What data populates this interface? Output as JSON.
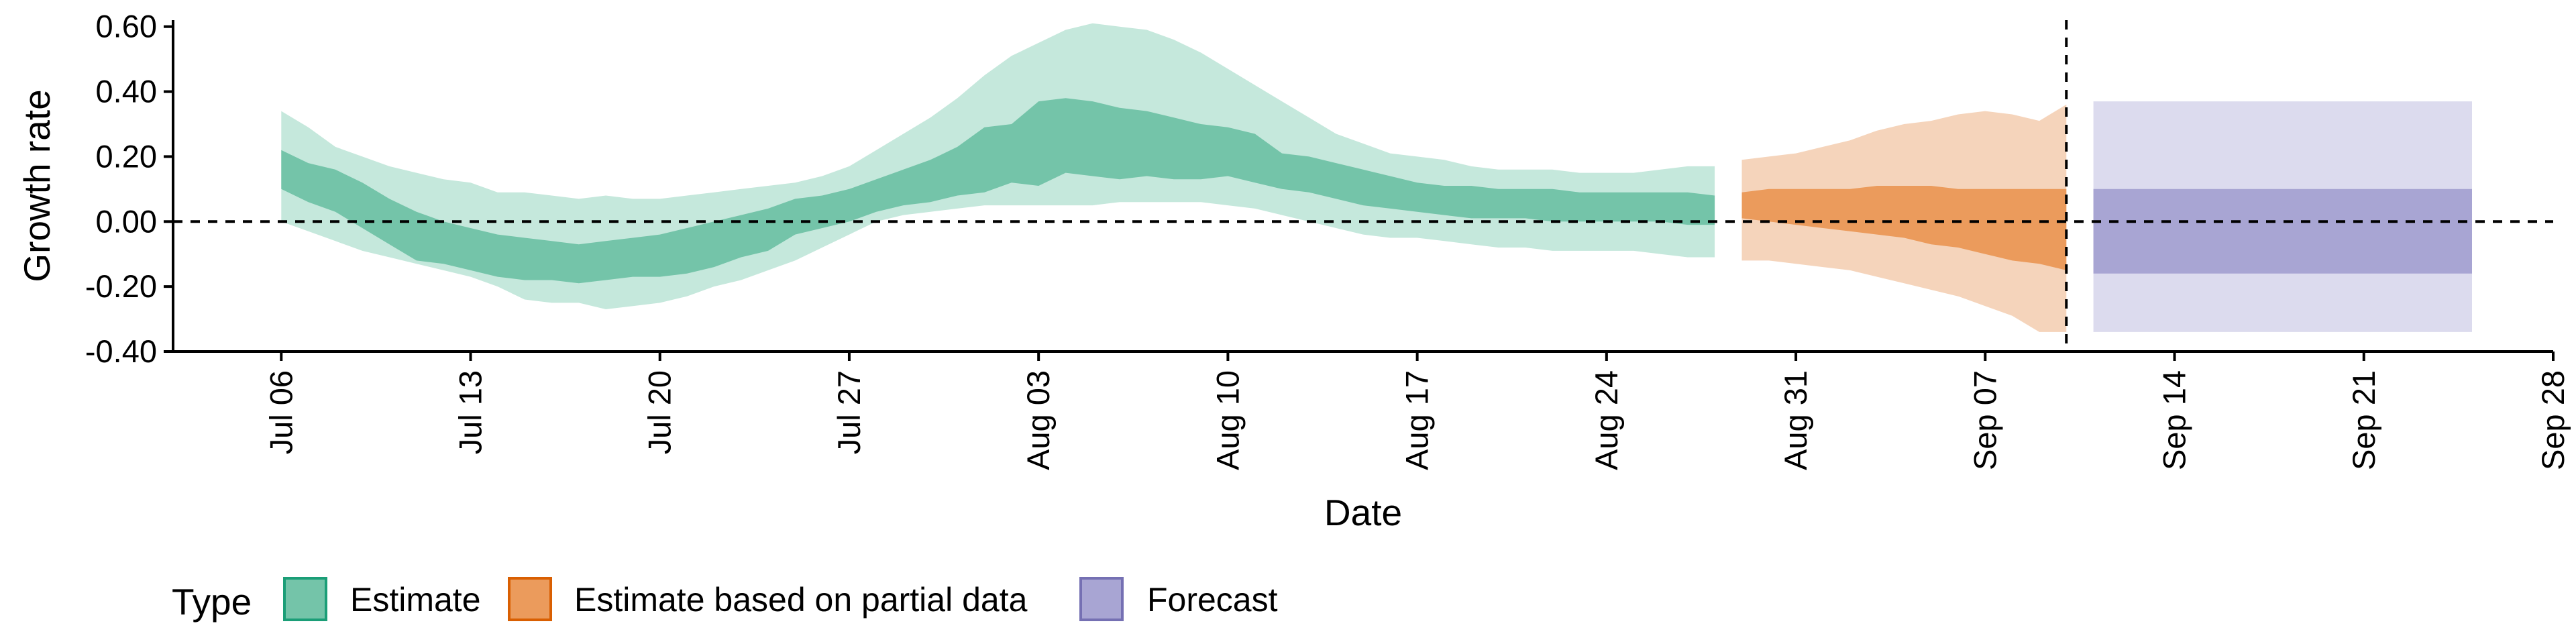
{
  "chart_data": {
    "type": "area",
    "title": "",
    "xlabel": "Date",
    "ylabel": "Growth rate",
    "ylim": [
      -0.4,
      0.62
    ],
    "yticks": [
      -0.4,
      -0.2,
      0.0,
      0.2,
      0.4,
      0.6
    ],
    "ytick_labels": [
      "-0.40",
      "-0.20",
      "0.00",
      "0.20",
      "0.40",
      "0.60"
    ],
    "xlim": [
      "2020-07-02",
      "2020-09-28"
    ],
    "xticks": [
      "2020-07-06",
      "2020-07-13",
      "2020-07-20",
      "2020-07-27",
      "2020-08-03",
      "2020-08-10",
      "2020-08-17",
      "2020-08-24",
      "2020-08-31",
      "2020-09-07",
      "2020-09-14",
      "2020-09-21",
      "2020-09-28"
    ],
    "xtick_labels": [
      "Jul 06",
      "Jul 13",
      "Jul 20",
      "Jul 27",
      "Aug 03",
      "Aug 10",
      "Aug 17",
      "Aug 24",
      "Aug 31",
      "Sep 07",
      "Sep 14",
      "Sep 21",
      "Sep 28"
    ],
    "hline": 0.0,
    "vline": "2020-09-10",
    "grid": false,
    "legend": {
      "title": "Type",
      "placement": "bottom-left",
      "entries": [
        {
          "label": "Estimate",
          "fill": "#74c4a9",
          "stroke": "#1b9e77"
        },
        {
          "label": "Estimate based on partial data",
          "fill": "#eb9b5c",
          "stroke": "#d95f02"
        },
        {
          "label": "Forecast",
          "fill": "#a8a5d3",
          "stroke": "#7570b3"
        }
      ]
    },
    "series": [
      {
        "type": "Estimate",
        "outer_color": "#c5e8dc",
        "inner_color": "#74c4a9",
        "x": [
          "2020-07-06",
          "2020-07-07",
          "2020-07-08",
          "2020-07-09",
          "2020-07-10",
          "2020-07-11",
          "2020-07-12",
          "2020-07-13",
          "2020-07-14",
          "2020-07-15",
          "2020-07-16",
          "2020-07-17",
          "2020-07-18",
          "2020-07-19",
          "2020-07-20",
          "2020-07-21",
          "2020-07-22",
          "2020-07-23",
          "2020-07-24",
          "2020-07-25",
          "2020-07-26",
          "2020-07-27",
          "2020-07-28",
          "2020-07-29",
          "2020-07-30",
          "2020-07-31",
          "2020-08-01",
          "2020-08-02",
          "2020-08-03",
          "2020-08-04",
          "2020-08-05",
          "2020-08-06",
          "2020-08-07",
          "2020-08-08",
          "2020-08-09",
          "2020-08-10",
          "2020-08-11",
          "2020-08-12",
          "2020-08-13",
          "2020-08-14",
          "2020-08-15",
          "2020-08-16",
          "2020-08-17",
          "2020-08-18",
          "2020-08-19",
          "2020-08-20",
          "2020-08-21",
          "2020-08-22",
          "2020-08-23",
          "2020-08-24",
          "2020-08-25",
          "2020-08-26",
          "2020-08-27",
          "2020-08-28"
        ],
        "upper90": [
          0.34,
          0.29,
          0.23,
          0.2,
          0.17,
          0.15,
          0.13,
          0.12,
          0.09,
          0.09,
          0.08,
          0.07,
          0.08,
          0.07,
          0.07,
          0.08,
          0.09,
          0.1,
          0.11,
          0.12,
          0.14,
          0.17,
          0.22,
          0.27,
          0.32,
          0.38,
          0.45,
          0.51,
          0.55,
          0.59,
          0.61,
          0.6,
          0.59,
          0.56,
          0.52,
          0.47,
          0.42,
          0.37,
          0.32,
          0.27,
          0.24,
          0.21,
          0.2,
          0.19,
          0.17,
          0.16,
          0.16,
          0.16,
          0.15,
          0.15,
          0.15,
          0.16,
          0.17,
          0.17
        ],
        "upper50": [
          0.22,
          0.18,
          0.16,
          0.12,
          0.07,
          0.03,
          0.0,
          -0.02,
          -0.04,
          -0.05,
          -0.06,
          -0.07,
          -0.06,
          -0.05,
          -0.04,
          -0.02,
          0.0,
          0.02,
          0.04,
          0.07,
          0.08,
          0.1,
          0.13,
          0.16,
          0.19,
          0.23,
          0.29,
          0.3,
          0.37,
          0.38,
          0.37,
          0.35,
          0.34,
          0.32,
          0.3,
          0.29,
          0.27,
          0.21,
          0.2,
          0.18,
          0.16,
          0.14,
          0.12,
          0.11,
          0.11,
          0.1,
          0.1,
          0.1,
          0.09,
          0.09,
          0.09,
          0.09,
          0.09,
          0.08
        ],
        "lower50": [
          0.1,
          0.06,
          0.03,
          -0.02,
          -0.07,
          -0.12,
          -0.13,
          -0.15,
          -0.17,
          -0.18,
          -0.18,
          -0.19,
          -0.18,
          -0.17,
          -0.17,
          -0.16,
          -0.14,
          -0.11,
          -0.09,
          -0.04,
          -0.02,
          0.0,
          0.03,
          0.05,
          0.06,
          0.08,
          0.09,
          0.12,
          0.11,
          0.15,
          0.14,
          0.13,
          0.14,
          0.13,
          0.13,
          0.14,
          0.12,
          0.1,
          0.09,
          0.07,
          0.05,
          0.04,
          0.03,
          0.02,
          0.01,
          0.01,
          0.01,
          0.0,
          0.0,
          0.0,
          0.0,
          0.0,
          -0.01,
          -0.01
        ],
        "lower90": [
          0.0,
          -0.03,
          -0.06,
          -0.09,
          -0.11,
          -0.13,
          -0.15,
          -0.17,
          -0.2,
          -0.24,
          -0.25,
          -0.25,
          -0.27,
          -0.26,
          -0.25,
          -0.23,
          -0.2,
          -0.18,
          -0.15,
          -0.12,
          -0.08,
          -0.04,
          0.0,
          0.02,
          0.03,
          0.04,
          0.05,
          0.05,
          0.05,
          0.05,
          0.05,
          0.06,
          0.06,
          0.06,
          0.06,
          0.05,
          0.04,
          0.02,
          0.0,
          -0.02,
          -0.04,
          -0.05,
          -0.05,
          -0.06,
          -0.07,
          -0.08,
          -0.08,
          -0.09,
          -0.09,
          -0.09,
          -0.09,
          -0.1,
          -0.11,
          -0.11
        ]
      },
      {
        "type": "Estimate based on partial data",
        "outer_color": "#f5d4bb",
        "inner_color": "#eb9b5c",
        "x": [
          "2020-08-29",
          "2020-08-30",
          "2020-08-31",
          "2020-09-01",
          "2020-09-02",
          "2020-09-03",
          "2020-09-04",
          "2020-09-05",
          "2020-09-06",
          "2020-09-07",
          "2020-09-08",
          "2020-09-09",
          "2020-09-10"
        ],
        "upper90": [
          0.19,
          0.2,
          0.21,
          0.23,
          0.25,
          0.28,
          0.3,
          0.31,
          0.33,
          0.34,
          0.33,
          0.31,
          0.36
        ],
        "upper50": [
          0.09,
          0.1,
          0.1,
          0.1,
          0.1,
          0.11,
          0.11,
          0.11,
          0.1,
          0.1,
          0.1,
          0.1,
          0.1
        ],
        "lower50": [
          0.01,
          0.0,
          -0.01,
          -0.02,
          -0.03,
          -0.04,
          -0.05,
          -0.07,
          -0.08,
          -0.1,
          -0.12,
          -0.13,
          -0.15
        ],
        "lower90": [
          -0.12,
          -0.12,
          -0.13,
          -0.14,
          -0.15,
          -0.17,
          -0.19,
          -0.21,
          -0.23,
          -0.26,
          -0.29,
          -0.34,
          -0.34
        ]
      },
      {
        "type": "Forecast",
        "outer_color": "#dcdbee",
        "inner_color": "#a8a5d3",
        "x": [
          "2020-09-11",
          "2020-09-25"
        ],
        "upper90": [
          0.37,
          0.37
        ],
        "upper50": [
          0.1,
          0.1
        ],
        "lower50": [
          -0.16,
          -0.16
        ],
        "lower90": [
          -0.34,
          -0.34
        ]
      }
    ]
  }
}
